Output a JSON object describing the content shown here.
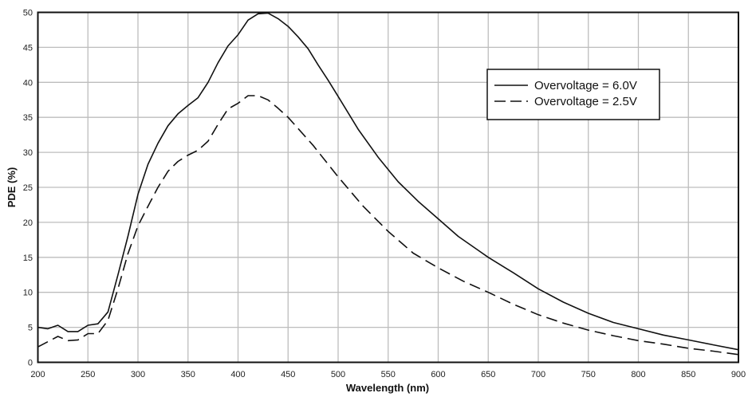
{
  "chart_data": {
    "type": "line",
    "title": "",
    "xlabel": "Wavelength (nm)",
    "ylabel": "PDE (%)",
    "xlim": [
      200,
      900
    ],
    "ylim": [
      0,
      50
    ],
    "xticks": [
      200,
      250,
      300,
      350,
      400,
      450,
      500,
      550,
      600,
      650,
      700,
      750,
      800,
      850,
      900
    ],
    "yticks": [
      0,
      5,
      10,
      15,
      20,
      25,
      30,
      35,
      40,
      45,
      50
    ],
    "grid": true,
    "legend_position": "top-right",
    "series": [
      {
        "name": "Overvoltage = 6.0V",
        "style": "solid",
        "x": [
          200,
          210,
          220,
          230,
          240,
          250,
          260,
          270,
          280,
          290,
          300,
          310,
          320,
          330,
          340,
          350,
          360,
          370,
          380,
          390,
          400,
          410,
          420,
          430,
          440,
          450,
          460,
          470,
          480,
          490,
          500,
          520,
          540,
          560,
          580,
          600,
          620,
          640,
          650,
          675,
          700,
          725,
          750,
          775,
          800,
          825,
          850,
          875,
          900
        ],
        "y": [
          5,
          4.8,
          5.3,
          4.4,
          4.4,
          5.3,
          5.5,
          7.2,
          12.5,
          18,
          24,
          28.3,
          31.3,
          33.8,
          35.5,
          36.7,
          37.8,
          40,
          42.8,
          45.2,
          46.8,
          48.9,
          49.8,
          49.9,
          49.1,
          48,
          46.5,
          44.8,
          42.5,
          40.3,
          38,
          33.3,
          29.3,
          25.8,
          23,
          20.5,
          18,
          16,
          15,
          12.8,
          10.5,
          8.6,
          7,
          5.7,
          4.8,
          3.9,
          3.2,
          2.5,
          1.8
        ]
      },
      {
        "name": "Overvoltage = 2.5V",
        "style": "dashed",
        "x": [
          200,
          220,
          230,
          240,
          250,
          260,
          270,
          280,
          290,
          300,
          310,
          320,
          330,
          340,
          350,
          360,
          370,
          380,
          390,
          400,
          410,
          420,
          430,
          440,
          450,
          475,
          500,
          525,
          550,
          575,
          600,
          625,
          650,
          675,
          700,
          725,
          750,
          775,
          800,
          825,
          850,
          875,
          900
        ],
        "y": [
          2.2,
          3.7,
          3.1,
          3.2,
          4.1,
          4.1,
          6,
          10.5,
          15.5,
          19.5,
          22.3,
          25,
          27.3,
          28.7,
          29.6,
          30.3,
          31.6,
          34,
          36.2,
          37,
          38.1,
          38.1,
          37.5,
          36.3,
          35,
          31,
          26.5,
          22.3,
          18.7,
          15.6,
          13.5,
          11.6,
          10,
          8.3,
          6.8,
          5.6,
          4.6,
          3.8,
          3.1,
          2.6,
          2,
          1.6,
          1.1
        ]
      }
    ]
  }
}
